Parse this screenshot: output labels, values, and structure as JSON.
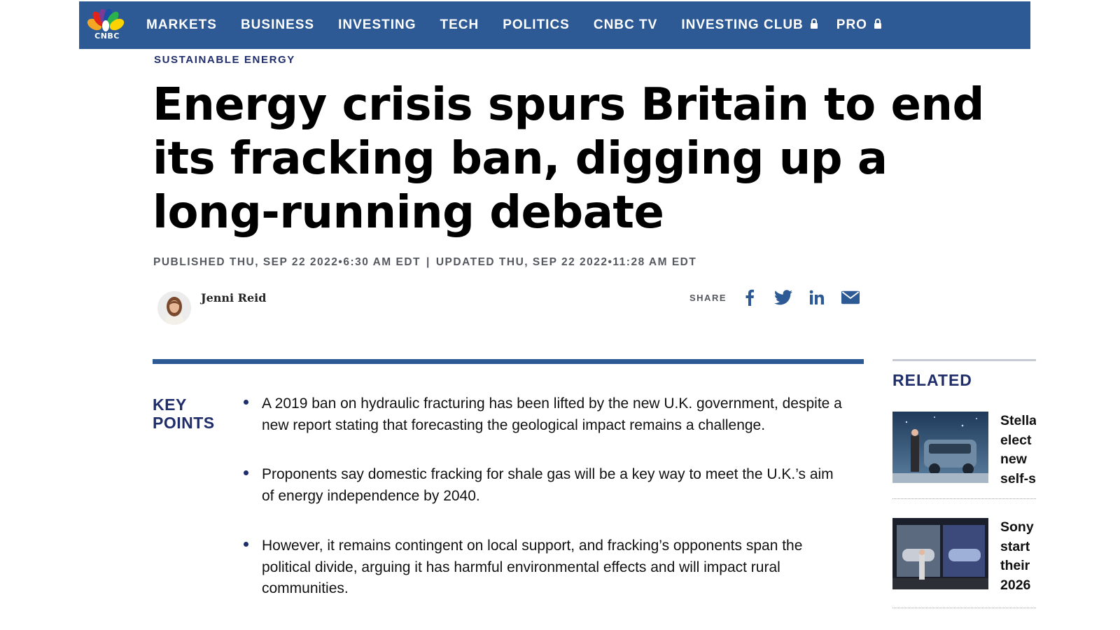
{
  "brand": {
    "name": "CNBC",
    "nav_color": "#2d5a94",
    "accent": "#1f2d6b"
  },
  "nav": {
    "items": [
      {
        "label": "MARKETS",
        "locked": false
      },
      {
        "label": "BUSINESS",
        "locked": false
      },
      {
        "label": "INVESTING",
        "locked": false
      },
      {
        "label": "TECH",
        "locked": false
      },
      {
        "label": "POLITICS",
        "locked": false
      },
      {
        "label": "CNBC TV",
        "locked": false
      },
      {
        "label": "INVESTING CLUB",
        "locked": true
      },
      {
        "label": "PRO",
        "locked": true
      }
    ]
  },
  "article": {
    "category": "SUSTAINABLE ENERGY",
    "headline": "Energy crisis spurs Britain to end its fracking ban, digging up a long-running debate",
    "published": "PUBLISHED THU, SEP 22 2022•6:30 AM EDT",
    "separator": "|",
    "updated": "UPDATED THU, SEP 22 2022•11:28 AM EDT",
    "author": "Jenni Reid",
    "share_label": "SHARE",
    "share_icons": [
      "facebook-icon",
      "twitter-icon",
      "linkedin-icon",
      "email-icon"
    ]
  },
  "key_points": {
    "label_line1": "KEY",
    "label_line2": "POINTS",
    "items": [
      "A 2019 ban on hydraulic fracturing has been lifted by the new U.K. government, despite a new report stating that forecasting the geological impact remains a challenge.",
      "Proponents say domestic fracking for shale gas will be a key way to meet the U.K.’s aim of energy independence by 2040.",
      "However, it remains contingent on local support, and fracking’s opponents span the political divide, arguing it has harmful environmental effects and will impact rural communities."
    ]
  },
  "related": {
    "title": "RELATED",
    "items": [
      {
        "text": "Stella elect new self-s"
      },
      {
        "text": "Sony start their 2026"
      }
    ]
  }
}
